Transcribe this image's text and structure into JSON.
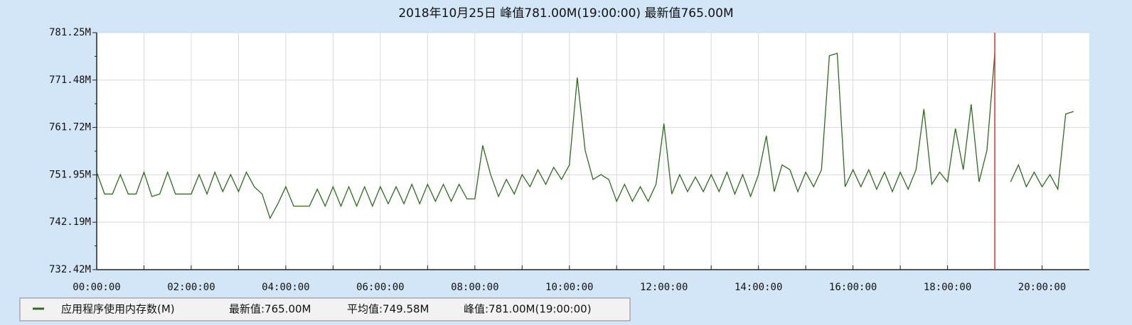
{
  "chart_data": {
    "type": "line",
    "title": "2018年10月25日 峰值781.00M(19:00:00) 最新值765.00M",
    "x": [
      0,
      10,
      20,
      30,
      40,
      50,
      60,
      70,
      80,
      90,
      100,
      110,
      120,
      130,
      140,
      150,
      160,
      170,
      180,
      190,
      200,
      210,
      220,
      230,
      240,
      250,
      260,
      270,
      280,
      290,
      300,
      310,
      320,
      330,
      340,
      350,
      360,
      370,
      380,
      390,
      400,
      410,
      420,
      430,
      440,
      450,
      460,
      470,
      480,
      490,
      500,
      510,
      520,
      530,
      540,
      550,
      560,
      570,
      580,
      590,
      600,
      610,
      620,
      630,
      640,
      650,
      660,
      670,
      680,
      690,
      700,
      710,
      720,
      730,
      740,
      750,
      760,
      770,
      780,
      790,
      800,
      810,
      820,
      830,
      840,
      850,
      860,
      870,
      880,
      890,
      900,
      910,
      920,
      930,
      940,
      950,
      960,
      970,
      980,
      990,
      1000,
      1010,
      1020,
      1030,
      1040,
      1050,
      1060,
      1070,
      1080,
      1090,
      1100,
      1110,
      1120,
      1130,
      1140,
      1150,
      1160,
      1170,
      1180,
      1190,
      1200,
      1210,
      1220,
      1230,
      1240
    ],
    "series": [
      {
        "name": "应用程序使用内存数(M)",
        "color": "#2e6b1e",
        "values": [
          752.5,
          748,
          748,
          752,
          748,
          748,
          752.5,
          747.5,
          748,
          752.5,
          748,
          748,
          748,
          752,
          748,
          752.5,
          748.5,
          752,
          748.5,
          752.5,
          749.5,
          748,
          743,
          746,
          749.5,
          745.5,
          745.5,
          745.5,
          749,
          745.5,
          749.5,
          745.5,
          749.5,
          745.5,
          749.5,
          745.5,
          749.5,
          746,
          749.5,
          746,
          750,
          746,
          750,
          746.5,
          750,
          746.5,
          750,
          747,
          747,
          758,
          752,
          747.5,
          751,
          748,
          752,
          749.5,
          753,
          750,
          753.5,
          751,
          754,
          772,
          757,
          751,
          752,
          751,
          746.5,
          750,
          746.5,
          749.5,
          746.5,
          750,
          762.5,
          748,
          752,
          748.5,
          751.5,
          748.5,
          752,
          748.5,
          752.5,
          748,
          752,
          747.5,
          752,
          760,
          748.5,
          754,
          753,
          748.5,
          752.5,
          749.5,
          753,
          776.5,
          777,
          749.5,
          753,
          749.5,
          753,
          749,
          752.5,
          748.5,
          752.5,
          749,
          753,
          765.5,
          750,
          752.5,
          750.5,
          761.5,
          753,
          766.5,
          750.5,
          757,
          777,
          null,
          750.5,
          754,
          749.5,
          752.5,
          749.5,
          752,
          749,
          764.5,
          765
        ]
      }
    ],
    "legend_stats": [
      "最新值:765.00M",
      "平均值:749.58M",
      "峰值:781.00M(19:00:00)"
    ],
    "xlim": [
      0,
      1260
    ],
    "xticks": [
      {
        "value": 0,
        "label": "00:00:00"
      },
      {
        "value": 120,
        "label": "02:00:00"
      },
      {
        "value": 240,
        "label": "04:00:00"
      },
      {
        "value": 360,
        "label": "06:00:00"
      },
      {
        "value": 480,
        "label": "08:00:00"
      },
      {
        "value": 600,
        "label": "10:00:00"
      },
      {
        "value": 720,
        "label": "12:00:00"
      },
      {
        "value": 840,
        "label": "14:00:00"
      },
      {
        "value": 960,
        "label": "16:00:00"
      },
      {
        "value": 1080,
        "label": "18:00:00"
      },
      {
        "value": 1200,
        "label": "20:00:00"
      }
    ],
    "ylim": [
      732.42,
      781.25
    ],
    "yticks": [
      {
        "value": 732.42,
        "label": "732.42M"
      },
      {
        "value": 742.19,
        "label": "742.19M"
      },
      {
        "value": 751.95,
        "label": "751.95M"
      },
      {
        "value": 761.72,
        "label": "761.72M"
      },
      {
        "value": 771.48,
        "label": "771.48M"
      },
      {
        "value": 781.25,
        "label": "781.25M"
      }
    ],
    "grid": true,
    "peak_line": {
      "x": 1140,
      "color": "#e03030"
    }
  }
}
